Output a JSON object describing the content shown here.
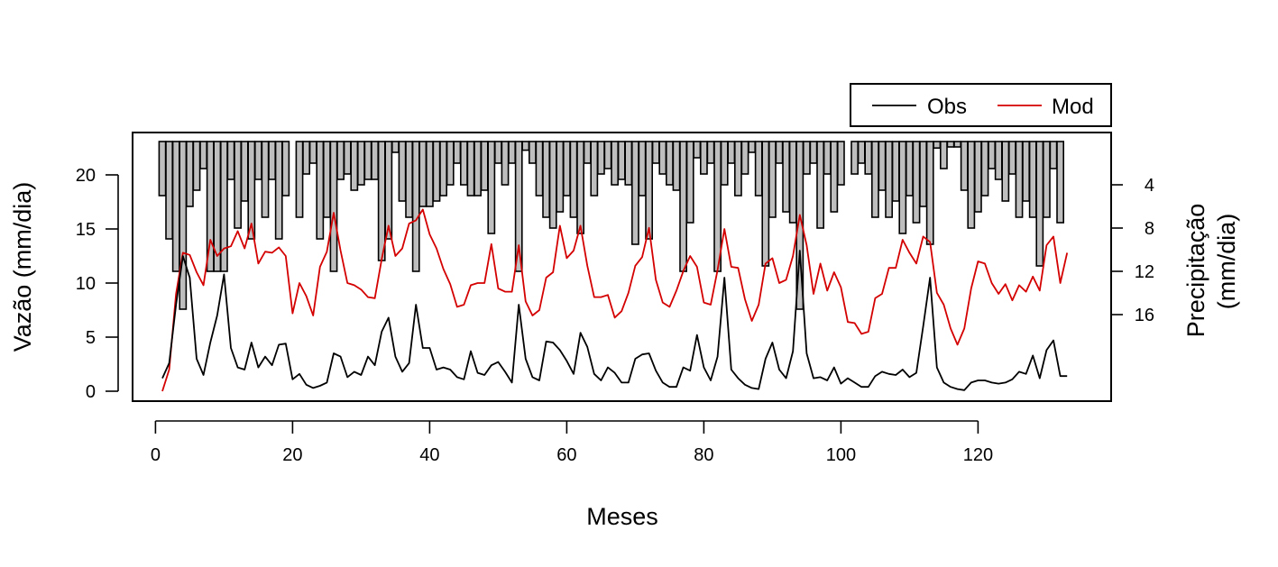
{
  "chart_data": {
    "type": "line",
    "xlabel": "Meses",
    "ylabel": "Vazão (mm/dia)",
    "y2label_lines": [
      "Precipitação",
      "(mm/dia)"
    ],
    "xlim": [
      1,
      133
    ],
    "ylim": [
      0,
      22.5
    ],
    "y2lim": [
      0,
      24.5
    ],
    "y2_reversed": true,
    "x_ticks": [
      0,
      20,
      40,
      60,
      80,
      100,
      120
    ],
    "y_ticks": [
      0,
      5,
      10,
      15,
      20
    ],
    "y2_ticks": [
      4,
      8,
      12,
      16
    ],
    "legend_position": "top-right, above plot",
    "series": [
      {
        "name": "Obs",
        "type": "line",
        "color": "#000000",
        "x": [
          1,
          2,
          3,
          4,
          5,
          6,
          7,
          8,
          9,
          10,
          11,
          12,
          13,
          14,
          15,
          16,
          17,
          18,
          19,
          20,
          21,
          22,
          23,
          24,
          25,
          26,
          27,
          28,
          29,
          30,
          31,
          32,
          33,
          34,
          35,
          36,
          37,
          38,
          39,
          40,
          41,
          42,
          43,
          44,
          45,
          46,
          47,
          48,
          49,
          50,
          51,
          52,
          53,
          54,
          55,
          56,
          57,
          58,
          59,
          60,
          61,
          62,
          63,
          64,
          65,
          66,
          67,
          68,
          69,
          70,
          71,
          72,
          73,
          74,
          75,
          76,
          77,
          78,
          79,
          80,
          81,
          82,
          83,
          84,
          85,
          86,
          87,
          88,
          89,
          90,
          91,
          92,
          93,
          94,
          95,
          96,
          97,
          98,
          99,
          100,
          101,
          102,
          103,
          104,
          105,
          106,
          107,
          108,
          109,
          110,
          111,
          112,
          113,
          114,
          115,
          116,
          117,
          118,
          119,
          120,
          121,
          122,
          123,
          124,
          125,
          126,
          127,
          128,
          129,
          130,
          131,
          132,
          133
        ],
        "values": [
          1.2,
          2.6,
          8.0,
          12.5,
          10.5,
          3.0,
          1.5,
          4.5,
          7.0,
          10.8,
          4.0,
          2.2,
          2.0,
          4.5,
          2.2,
          3.2,
          2.4,
          4.3,
          4.4,
          1.1,
          1.6,
          0.6,
          0.3,
          0.5,
          0.8,
          3.5,
          3.2,
          1.3,
          1.8,
          1.5,
          3.2,
          2.4,
          5.5,
          6.8,
          3.2,
          1.8,
          2.6,
          8.0,
          4.0,
          4.0,
          2.0,
          2.2,
          2.0,
          1.3,
          1.1,
          3.7,
          1.7,
          1.5,
          2.4,
          2.7,
          1.8,
          0.8,
          8.0,
          3.0,
          1.3,
          1.0,
          4.6,
          4.5,
          3.8,
          2.8,
          1.6,
          5.4,
          4.1,
          1.6,
          1.0,
          2.2,
          1.7,
          0.8,
          0.8,
          3.0,
          3.4,
          3.5,
          1.9,
          0.8,
          0.4,
          0.4,
          2.2,
          1.9,
          5.2,
          2.2,
          1.0,
          3.2,
          10.5,
          2.0,
          1.2,
          0.6,
          0.3,
          0.2,
          3.0,
          4.5,
          2.0,
          1.2,
          3.7,
          13.0,
          3.5,
          1.2,
          1.3,
          1.0,
          2.2,
          0.7,
          1.2,
          0.8,
          0.4,
          0.4,
          1.4,
          1.8,
          1.6,
          1.5,
          2.0,
          1.3,
          1.7,
          6.0,
          10.5,
          2.2,
          0.8,
          0.4,
          0.2,
          0.1,
          0.8,
          1.0,
          1.0,
          0.8,
          0.7,
          0.8,
          1.1,
          1.8,
          1.6,
          3.3,
          1.2,
          3.8,
          4.7,
          1.4,
          1.4
        ]
      },
      {
        "name": "Mod",
        "type": "line",
        "color": "#d40000",
        "x": [
          1,
          2,
          3,
          4,
          5,
          6,
          7,
          8,
          9,
          10,
          11,
          12,
          13,
          14,
          15,
          16,
          17,
          18,
          19,
          20,
          21,
          22,
          23,
          24,
          25,
          26,
          27,
          28,
          29,
          30,
          31,
          32,
          33,
          34,
          35,
          36,
          37,
          38,
          39,
          40,
          41,
          42,
          43,
          44,
          45,
          46,
          47,
          48,
          49,
          50,
          51,
          52,
          53,
          54,
          55,
          56,
          57,
          58,
          59,
          60,
          61,
          62,
          63,
          64,
          65,
          66,
          67,
          68,
          69,
          70,
          71,
          72,
          73,
          74,
          75,
          76,
          77,
          78,
          79,
          80,
          81,
          82,
          83,
          84,
          85,
          86,
          87,
          88,
          89,
          90,
          91,
          92,
          93,
          94,
          95,
          96,
          97,
          98,
          99,
          100,
          101,
          102,
          103,
          104,
          105,
          106,
          107,
          108,
          109,
          110,
          111,
          112,
          113,
          114,
          115,
          116,
          117,
          118,
          119,
          120,
          121,
          122,
          123,
          124,
          125,
          126,
          127,
          128,
          129,
          130,
          131,
          132,
          133
        ],
        "values": [
          0.0,
          2.0,
          9.0,
          12.8,
          12.6,
          11.0,
          9.8,
          14.0,
          12.5,
          13.2,
          13.4,
          14.8,
          13.2,
          15.5,
          11.8,
          12.9,
          12.8,
          13.3,
          12.5,
          7.2,
          10.0,
          8.8,
          7.0,
          11.5,
          12.9,
          16.5,
          13.0,
          10.0,
          9.8,
          9.4,
          8.7,
          8.6,
          12.2,
          15.3,
          12.5,
          13.2,
          15.5,
          15.8,
          16.8,
          14.5,
          13.2,
          11.3,
          9.9,
          7.8,
          8.0,
          9.8,
          10.0,
          10.0,
          13.6,
          9.5,
          9.2,
          9.2,
          13.5,
          8.3,
          7.0,
          7.5,
          10.5,
          11.0,
          15.3,
          12.3,
          13.0,
          15.3,
          11.6,
          8.7,
          8.7,
          8.9,
          6.8,
          7.4,
          9.1,
          11.6,
          12.4,
          15.1,
          10.3,
          8.2,
          7.8,
          9.3,
          11.1,
          12.5,
          11.5,
          8.2,
          8.0,
          11.2,
          15.0,
          11.5,
          11.4,
          8.5,
          6.5,
          8.0,
          11.8,
          12.3,
          10.0,
          10.3,
          12.5,
          16.3,
          13.5,
          9.0,
          11.8,
          9.3,
          11.0,
          9.6,
          6.4,
          6.3,
          5.3,
          5.5,
          8.6,
          9.0,
          11.4,
          11.4,
          14.0,
          12.8,
          11.8,
          14.3,
          13.8,
          9.1,
          8.0,
          5.8,
          4.3,
          5.8,
          9.5,
          12.0,
          11.8,
          10.0,
          9.0,
          9.9,
          8.4,
          9.8,
          9.2,
          10.6,
          9.3,
          13.5,
          14.3,
          10.0,
          12.8
        ]
      },
      {
        "name": "Precipitação",
        "type": "bar",
        "color": "#bebebe",
        "x": [
          1,
          2,
          3,
          4,
          5,
          6,
          7,
          8,
          9,
          10,
          11,
          12,
          13,
          14,
          15,
          16,
          17,
          18,
          19,
          20,
          21,
          22,
          23,
          24,
          25,
          26,
          27,
          28,
          29,
          30,
          31,
          32,
          33,
          34,
          35,
          36,
          37,
          38,
          39,
          40,
          41,
          42,
          43,
          44,
          45,
          46,
          47,
          48,
          49,
          50,
          51,
          52,
          53,
          54,
          55,
          56,
          57,
          58,
          59,
          60,
          61,
          62,
          63,
          64,
          65,
          66,
          67,
          68,
          69,
          70,
          71,
          72,
          73,
          74,
          75,
          76,
          77,
          78,
          79,
          80,
          81,
          82,
          83,
          84,
          85,
          86,
          87,
          88,
          89,
          90,
          91,
          92,
          93,
          94,
          95,
          96,
          97,
          98,
          99,
          100,
          101,
          102,
          103,
          104,
          105,
          106,
          107,
          108,
          109,
          110,
          111,
          112,
          113,
          114,
          115,
          116,
          117,
          118,
          119,
          120,
          121,
          122,
          123,
          124,
          125,
          126,
          127,
          128,
          129,
          130,
          131,
          132,
          133
        ],
        "values": [
          5.0,
          9.0,
          12.0,
          15.5,
          6.0,
          4.5,
          2.5,
          12.0,
          12.0,
          12.0,
          3.5,
          8.0,
          5.5,
          9.0,
          3.5,
          7.0,
          3.5,
          9.0,
          5.0,
          0.0,
          7.0,
          3.0,
          2.0,
          9.0,
          7.0,
          12.0,
          3.5,
          3.0,
          4.5,
          4.0,
          3.5,
          3.5,
          11.0,
          9.0,
          1.0,
          5.5,
          7.0,
          12.0,
          6.0,
          6.0,
          5.5,
          5.0,
          4.0,
          2.0,
          4.0,
          5.0,
          5.0,
          4.5,
          8.5,
          2.0,
          4.0,
          2.0,
          12.0,
          0.8,
          2.0,
          5.0,
          7.0,
          8.0,
          6.5,
          5.0,
          7.0,
          8.5,
          2.0,
          5.0,
          3.0,
          2.5,
          4.0,
          3.5,
          4.0,
          9.5,
          5.0,
          9.0,
          2.0,
          3.0,
          4.0,
          4.5,
          12.0,
          7.5,
          1.5,
          3.0,
          2.0,
          12.0,
          4.0,
          2.0,
          5.0,
          3.0,
          1.0,
          5.0,
          11.5,
          7.0,
          2.0,
          6.5,
          7.5,
          15.5,
          3.0,
          2.0,
          8.0,
          3.0,
          6.5,
          4.0,
          0.0,
          3.0,
          2.0,
          3.0,
          7.0,
          4.5,
          7.0,
          5.5,
          8.5,
          5.0,
          7.5,
          6.0,
          9.5,
          0.6,
          2.5,
          0.5,
          0.5,
          4.5,
          8.0,
          6.5,
          5.0,
          2.5,
          3.5,
          5.5,
          3.0,
          7.0,
          5.5,
          7.0,
          11.5,
          7.0,
          2.5,
          7.5,
          0.0
        ]
      }
    ]
  }
}
